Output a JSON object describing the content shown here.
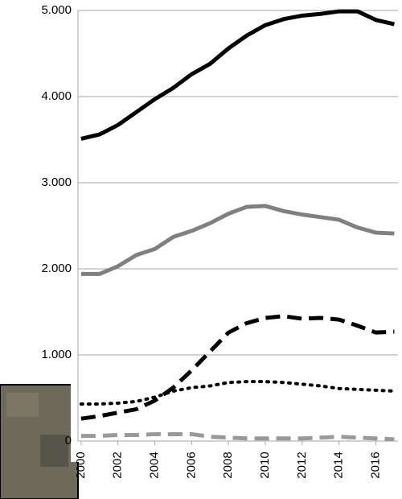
{
  "chart_data": {
    "type": "line",
    "x": [
      2000,
      2001,
      2002,
      2003,
      2004,
      2005,
      2006,
      2007,
      2008,
      2009,
      2010,
      2011,
      2012,
      2013,
      2014,
      2015,
      2016,
      2017
    ],
    "series": [
      {
        "color": "#000000",
        "dash": "solid",
        "values": [
          3510,
          3560,
          3670,
          3820,
          3970,
          4100,
          4260,
          4380,
          4560,
          4710,
          4830,
          4900,
          4940,
          4960,
          4990,
          4990,
          4890,
          4840
        ]
      },
      {
        "color": "#808080",
        "dash": "solid",
        "values": [
          1940,
          1940,
          2030,
          2160,
          2230,
          2370,
          2440,
          2530,
          2640,
          2720,
          2730,
          2670,
          2630,
          2600,
          2570,
          2480,
          2420,
          2410
        ]
      },
      {
        "color": "#000000",
        "dash": "dashed",
        "values": [
          260,
          290,
          330,
          370,
          470,
          620,
          820,
          1040,
          1260,
          1370,
          1430,
          1450,
          1420,
          1430,
          1410,
          1340,
          1260,
          1270
        ]
      },
      {
        "color": "#000000",
        "dash": "dotted",
        "values": [
          430,
          430,
          440,
          460,
          510,
          580,
          620,
          640,
          680,
          690,
          690,
          680,
          660,
          640,
          610,
          600,
          590,
          580
        ]
      },
      {
        "color": "#999999",
        "dash": "dashed",
        "values": [
          60,
          60,
          70,
          70,
          80,
          80,
          80,
          50,
          40,
          30,
          30,
          30,
          30,
          40,
          50,
          40,
          30,
          20
        ]
      }
    ],
    "xlim": [
      1999.83,
      2017.2
    ],
    "xticks": [
      2000,
      2002,
      2004,
      2006,
      2008,
      2010,
      2012,
      2014,
      2016
    ],
    "ylim": [
      0,
      5000
    ],
    "yticks": [
      0,
      {
        "value": 1000,
        "label": "1.000"
      },
      {
        "value": 2000,
        "label": "2.000"
      },
      {
        "value": 3000,
        "label": "3.000"
      },
      {
        "value": 4000,
        "label": "4.000"
      },
      {
        "value": 5000,
        "label": "5.000"
      }
    ],
    "grid": true
  }
}
